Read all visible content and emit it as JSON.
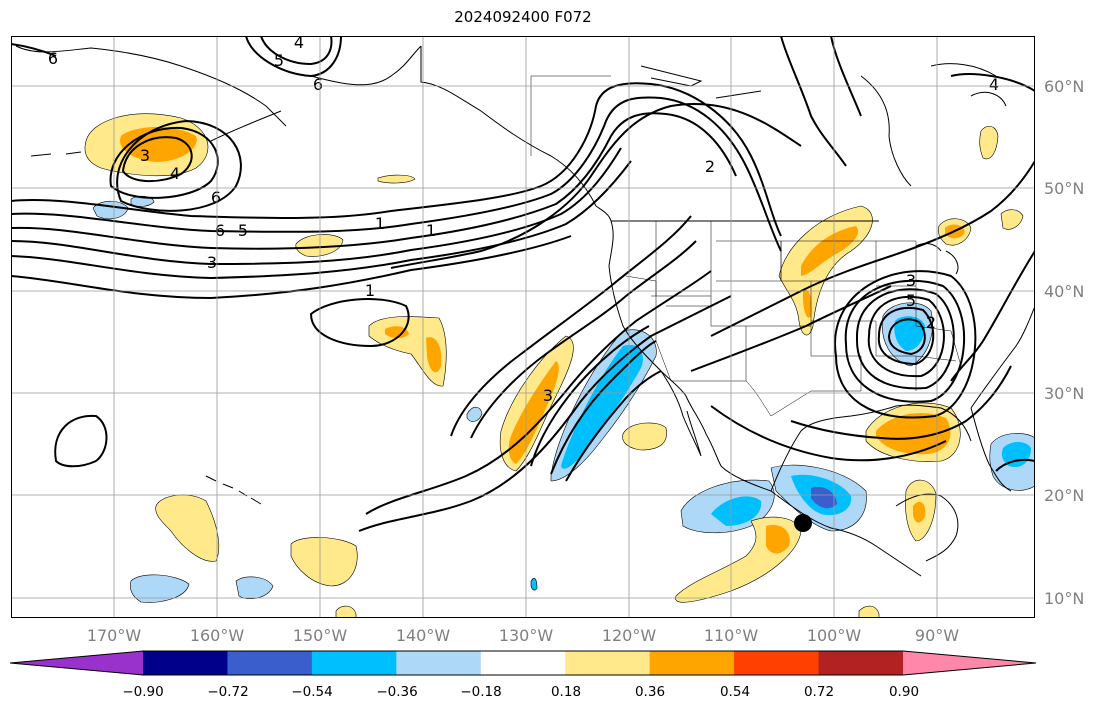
{
  "title": "2024092400 F072",
  "map": {
    "region": "North-East Pacific and North America",
    "latitude_labels": [
      "60°N",
      "50°N",
      "40°N",
      "30°N",
      "20°N",
      "10°N"
    ],
    "longitude_labels": [
      "170°W",
      "160°W",
      "150°W",
      "140°W",
      "130°W",
      "120°W",
      "110°W",
      "100°W",
      "90°W"
    ],
    "contour_labels": [
      "6",
      "4",
      "5",
      "6",
      "3",
      "4",
      "6",
      "6",
      "5",
      "3",
      "2",
      "1",
      "1",
      "3",
      "4",
      "1",
      "3",
      "5",
      "2"
    ],
    "marker": "black-dot"
  },
  "colorbar": {
    "tick_labels": [
      "−0.90",
      "−0.72",
      "−0.54",
      "−0.36",
      "−0.18",
      "0.18",
      "0.36",
      "0.54",
      "0.72",
      "0.90"
    ],
    "colors": [
      "#9932CC",
      "#00008B",
      "#3A5FCD",
      "#00BFFF",
      "#ADD8F8",
      "#FFFFFF",
      "#FFE98A",
      "#FFA500",
      "#FF4000",
      "#B22222",
      "#FF88AA"
    ],
    "extend": "both"
  }
}
